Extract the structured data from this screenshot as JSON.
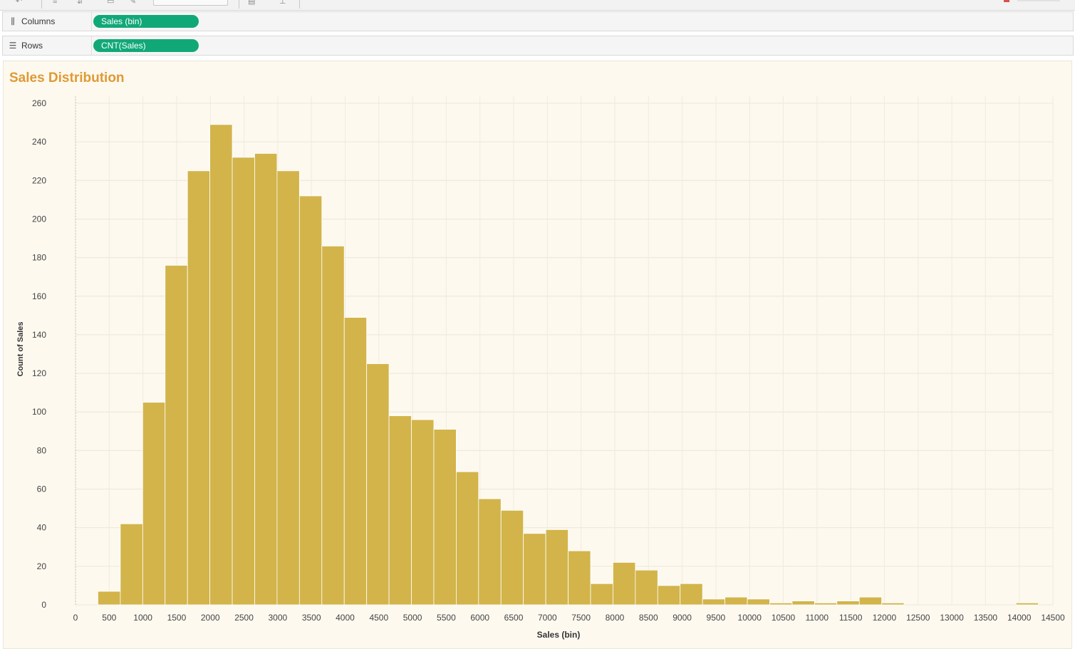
{
  "shelves": {
    "columns": {
      "icon": "columns-icon",
      "label": "Columns",
      "pill": "Sales (bin)"
    },
    "rows": {
      "icon": "rows-icon",
      "label": "Rows",
      "pill": "CNT(Sales)"
    }
  },
  "colors": {
    "bar": "#d2b44a",
    "bar_edge": "#ffffff",
    "pill": "#11a878",
    "title": "#df9a34",
    "panel_bg": "#fdf9ef"
  },
  "chart_data": {
    "type": "bar",
    "title": "Sales Distribution",
    "xlabel": "Sales (bin)",
    "ylabel": "Count of Sales",
    "bin_size": 332.22,
    "bin_starts": [
      332.22,
      664.44,
      996.66,
      1328.88,
      1661.1,
      1993.32,
      2325.54,
      2657.76,
      2989.98,
      3322.2,
      3654.42,
      3986.64,
      4318.86,
      4651.08,
      4983.3,
      5315.52,
      5647.74,
      5979.96,
      6312.18,
      6644.4,
      6976.62,
      7308.84,
      7641.06,
      7973.28,
      8305.5,
      8637.72,
      8969.94,
      9302.16,
      9634.38,
      9966.6,
      10298.82,
      10631.04,
      10963.26,
      11295.48,
      11627.7,
      11959.92,
      13952.04
    ],
    "values": [
      7,
      42,
      105,
      176,
      225,
      249,
      232,
      234,
      225,
      212,
      186,
      149,
      125,
      98,
      96,
      91,
      69,
      55,
      49,
      37,
      39,
      28,
      11,
      22,
      18,
      10,
      11,
      3,
      4,
      3,
      1,
      2,
      1,
      2,
      4,
      1,
      1
    ],
    "x_ticks": [
      "0",
      "500",
      "1000",
      "1500",
      "2000",
      "2500",
      "3000",
      "3500",
      "4000",
      "4500",
      "5000",
      "5500",
      "6000",
      "6500",
      "7000",
      "7500",
      "8000",
      "8500",
      "9000",
      "9500",
      "10000",
      "10500",
      "11000",
      "11500",
      "12000",
      "12500",
      "13000",
      "13500",
      "14000",
      "14500"
    ],
    "y_ticks": [
      "0",
      "20",
      "40",
      "60",
      "80",
      "100",
      "120",
      "140",
      "160",
      "180",
      "200",
      "220",
      "240",
      "260"
    ],
    "xlim": [
      0,
      14500
    ],
    "ylim": [
      0,
      260
    ],
    "grid": true,
    "legend": "none"
  }
}
